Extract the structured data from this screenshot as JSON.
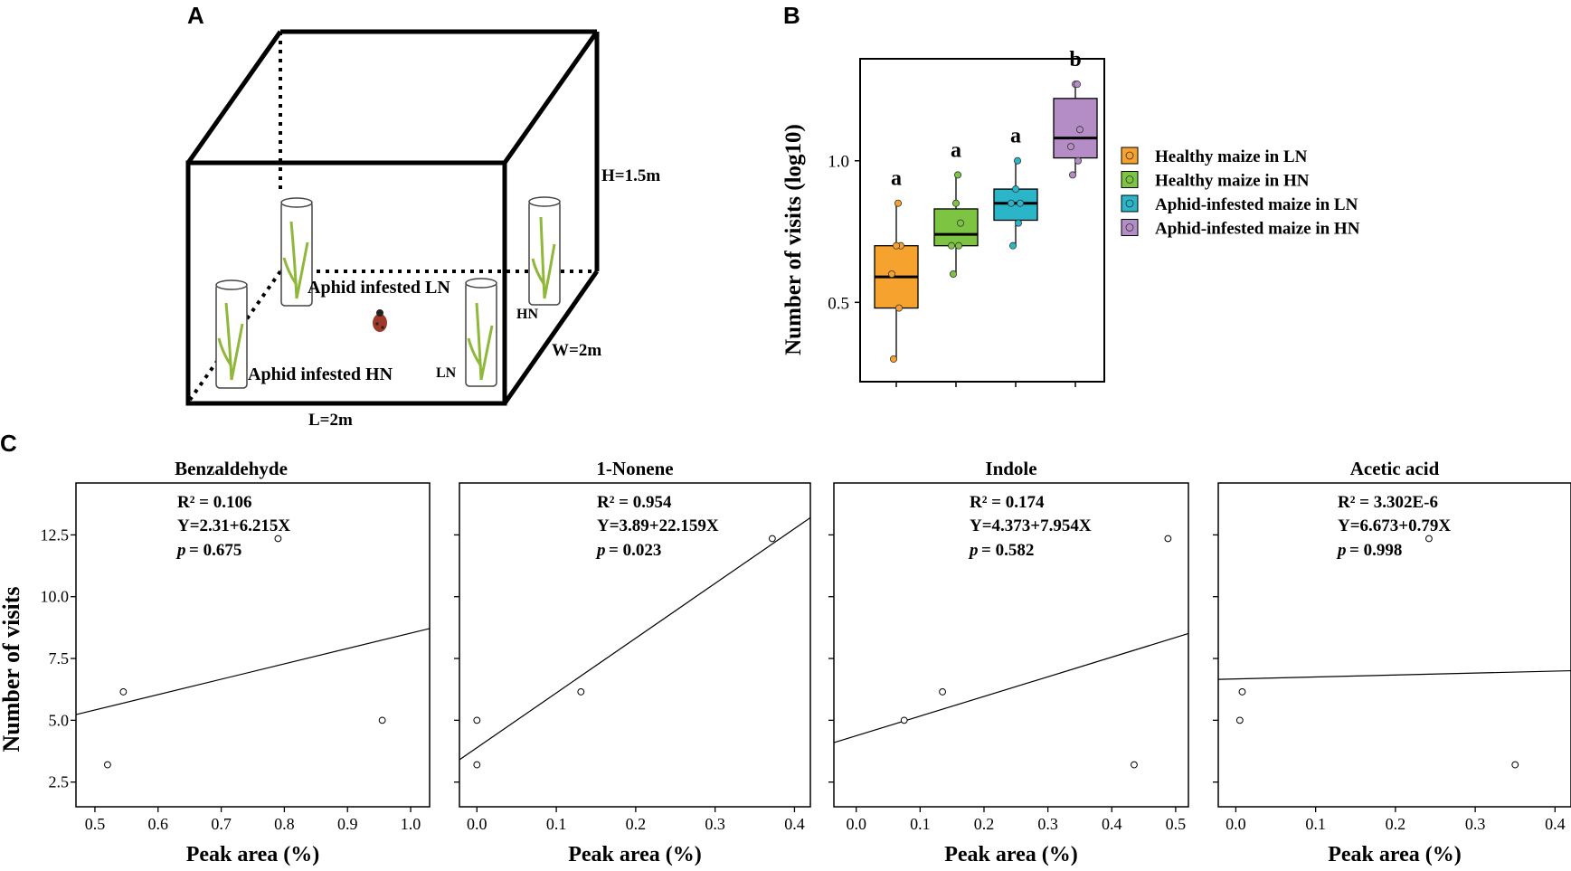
{
  "panel_labels": {
    "a": "A",
    "b": "B",
    "c": "C"
  },
  "panel_a": {
    "labels": {
      "height": "H=1.5m",
      "width": "W=2m",
      "length": "L=2m",
      "aphid_ln": "Aphid infested LN",
      "aphid_hn": "Aphid infested HN",
      "ln": "LN",
      "hn": "HN"
    }
  },
  "colors": {
    "healthy_ln": "#F5A22E",
    "healthy_hn": "#7DC443",
    "aphid_ln": "#2BB5C9",
    "aphid_hn": "#B48CC6",
    "plant": "#8FB83A",
    "line": "#000000"
  },
  "chart_data": [
    {
      "type": "box",
      "panel": "B",
      "ylabel": "Number of visits (log10)",
      "yticks": [
        0.5,
        1.0
      ],
      "ytick_labels": [
        "0.5",
        "1.0"
      ],
      "ylim": [
        0.22,
        1.36
      ],
      "legend_position": "right",
      "series": [
        {
          "name": "Healthy maize in LN",
          "letter": "a",
          "q1": 0.48,
          "median": 0.59,
          "q3": 0.7,
          "whisker_low": 0.3,
          "whisker_high": 0.85,
          "points": [
            0.3,
            0.48,
            0.6,
            0.7,
            0.7,
            0.85
          ]
        },
        {
          "name": "Healthy maize in HN",
          "letter": "a",
          "q1": 0.7,
          "median": 0.74,
          "q3": 0.83,
          "whisker_low": 0.6,
          "whisker_high": 0.95,
          "points": [
            0.6,
            0.7,
            0.7,
            0.78,
            0.85,
            0.95
          ]
        },
        {
          "name": "Aphid-infested maize in LN",
          "letter": "a",
          "q1": 0.79,
          "median": 0.85,
          "q3": 0.9,
          "whisker_low": 0.7,
          "whisker_high": 1.0,
          "points": [
            0.7,
            0.78,
            0.85,
            0.85,
            0.9,
            1.0
          ]
        },
        {
          "name": "Aphid-infested maize in HN",
          "letter": "b",
          "q1": 1.01,
          "median": 1.08,
          "q3": 1.22,
          "whisker_low": 0.95,
          "whisker_high": 1.27,
          "points": [
            0.95,
            1.0,
            1.05,
            1.11,
            1.27,
            1.27
          ]
        }
      ]
    },
    {
      "type": "scatter",
      "panel": "C",
      "title": "Benzaldehyde",
      "xlabel": "Peak area (%)",
      "ylabel": "Number of visits",
      "xlim": [
        0.47,
        1.03
      ],
      "ylim": [
        1.5,
        14.6
      ],
      "xticks": [
        0.5,
        0.6,
        0.7,
        0.8,
        0.9,
        1.0
      ],
      "xtick_labels": [
        "0.5",
        "0.6",
        "0.7",
        "0.8",
        "0.9",
        "1.0"
      ],
      "yticks": [
        2.5,
        5.0,
        7.5,
        10.0,
        12.5
      ],
      "ytick_labels": [
        "2.5",
        "5.0",
        "7.5",
        "10.0",
        "12.5"
      ],
      "points": [
        [
          0.52,
          3.2
        ],
        [
          0.545,
          6.15
        ],
        [
          0.79,
          12.35
        ],
        [
          0.955,
          5.0
        ]
      ],
      "fit": {
        "intercept": 2.31,
        "slope": 6.215
      },
      "stats": {
        "r2": "R² = 0.106",
        "eq": "Y=2.31+6.215X",
        "p_prefix": "p",
        "p_value": "= 0.675"
      }
    },
    {
      "type": "scatter",
      "panel": "C",
      "title": "1-Nonene",
      "xlabel": "Peak area (%)",
      "ylabel": "",
      "xlim": [
        -0.022,
        0.42
      ],
      "ylim": [
        1.5,
        14.6
      ],
      "xticks": [
        0.0,
        0.1,
        0.2,
        0.3,
        0.4
      ],
      "xtick_labels": [
        "0.0",
        "0.1",
        "0.2",
        "0.3",
        "0.4"
      ],
      "yticks": [
        2.5,
        5.0,
        7.5,
        10.0,
        12.5
      ],
      "points": [
        [
          0.0,
          3.2
        ],
        [
          0.0,
          5.0
        ],
        [
          0.131,
          6.15
        ],
        [
          0.372,
          12.35
        ]
      ],
      "fit": {
        "intercept": 3.89,
        "slope": 22.159
      },
      "stats": {
        "r2": "R² = 0.954",
        "eq": "Y=3.89+22.159X",
        "p_prefix": "p",
        "p_value": "= 0.023"
      }
    },
    {
      "type": "scatter",
      "panel": "C",
      "title": "Indole",
      "xlabel": "Peak area (%)",
      "ylabel": "",
      "xlim": [
        -0.035,
        0.52
      ],
      "ylim": [
        1.5,
        14.6
      ],
      "xticks": [
        0.0,
        0.1,
        0.2,
        0.3,
        0.4,
        0.5
      ],
      "xtick_labels": [
        "0.0",
        "0.1",
        "0.2",
        "0.3",
        "0.4",
        "0.5"
      ],
      "yticks": [
        2.5,
        5.0,
        7.5,
        10.0,
        12.5
      ],
      "points": [
        [
          0.075,
          5.0
        ],
        [
          0.135,
          6.15
        ],
        [
          0.435,
          3.2
        ],
        [
          0.488,
          12.35
        ]
      ],
      "fit": {
        "intercept": 4.373,
        "slope": 7.954
      },
      "stats": {
        "r2": "R² = 0.174",
        "eq": "Y=4.373+7.954X",
        "p_prefix": "p",
        "p_value": "= 0.582"
      }
    },
    {
      "type": "scatter",
      "panel": "C",
      "title": "Acetic acid",
      "xlabel": "Peak area (%)",
      "ylabel": "",
      "xlim": [
        -0.022,
        0.42
      ],
      "ylim": [
        1.5,
        14.6
      ],
      "xticks": [
        0.0,
        0.1,
        0.2,
        0.3,
        0.4
      ],
      "xtick_labels": [
        "0.0",
        "0.1",
        "0.2",
        "0.3",
        "0.4"
      ],
      "yticks": [
        2.5,
        5.0,
        7.5,
        10.0,
        12.5
      ],
      "points": [
        [
          0.005,
          5.0
        ],
        [
          0.008,
          6.15
        ],
        [
          0.242,
          12.35
        ],
        [
          0.35,
          3.2
        ]
      ],
      "fit": {
        "intercept": 6.673,
        "slope": 0.79
      },
      "stats": {
        "r2": "R² = 3.302E-6",
        "eq": "Y=6.673+0.79X",
        "p_prefix": "p",
        "p_value": "= 0.998"
      }
    }
  ]
}
